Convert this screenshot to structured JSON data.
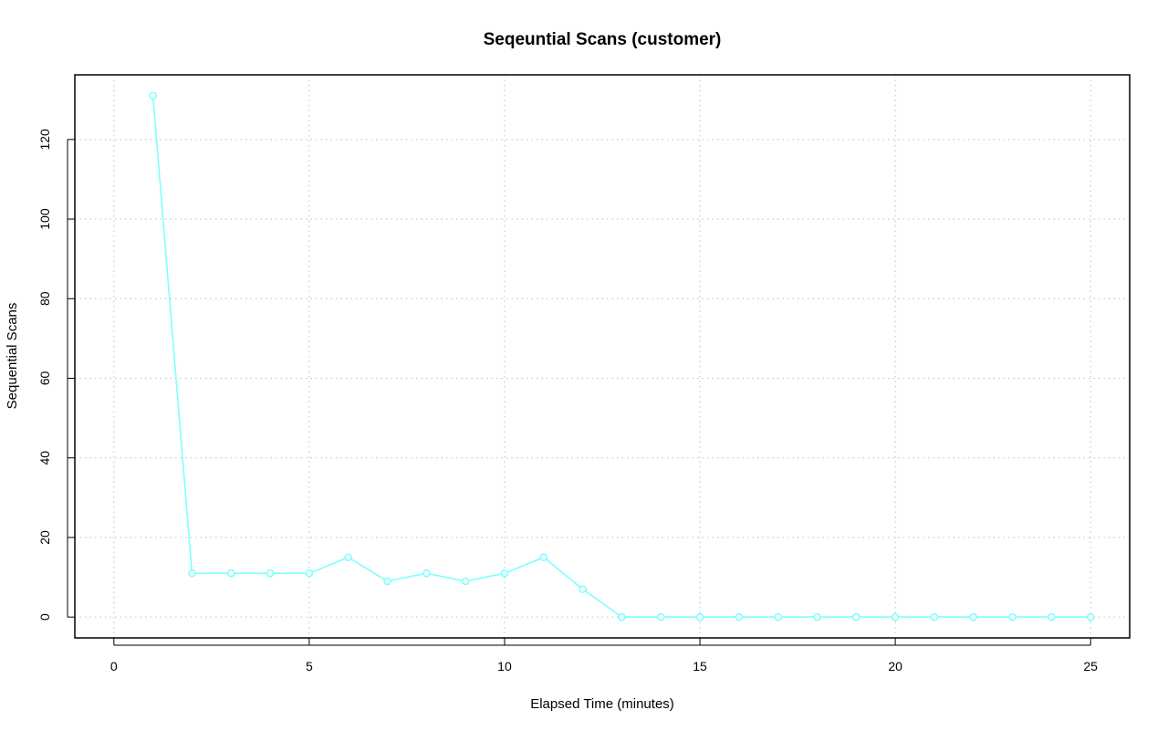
{
  "chart_data": {
    "type": "line",
    "title": "Seqeuntial Scans (customer)",
    "xlabel": "Elapsed Time (minutes)",
    "ylabel": "Sequential Scans",
    "xlim": [
      -1,
      26
    ],
    "ylim": [
      -5.24,
      136.24
    ],
    "xticks": [
      0,
      5,
      10,
      15,
      20,
      25
    ],
    "yticks": [
      0,
      20,
      40,
      60,
      80,
      100,
      120
    ],
    "grid": true,
    "series": [
      {
        "color": "#7fffff",
        "marker": "open-circle",
        "x": [
          1,
          2,
          3,
          4,
          5,
          6,
          7,
          8,
          9,
          10,
          11,
          12,
          13,
          14,
          15,
          16,
          17,
          18,
          19,
          20,
          21,
          22,
          23,
          24,
          25
        ],
        "y": [
          131,
          11,
          11,
          11,
          11,
          15,
          9,
          11,
          9,
          11,
          15,
          7,
          0,
          0,
          0,
          0,
          0,
          0,
          0,
          0,
          0,
          0,
          0,
          0,
          0
        ]
      }
    ]
  }
}
